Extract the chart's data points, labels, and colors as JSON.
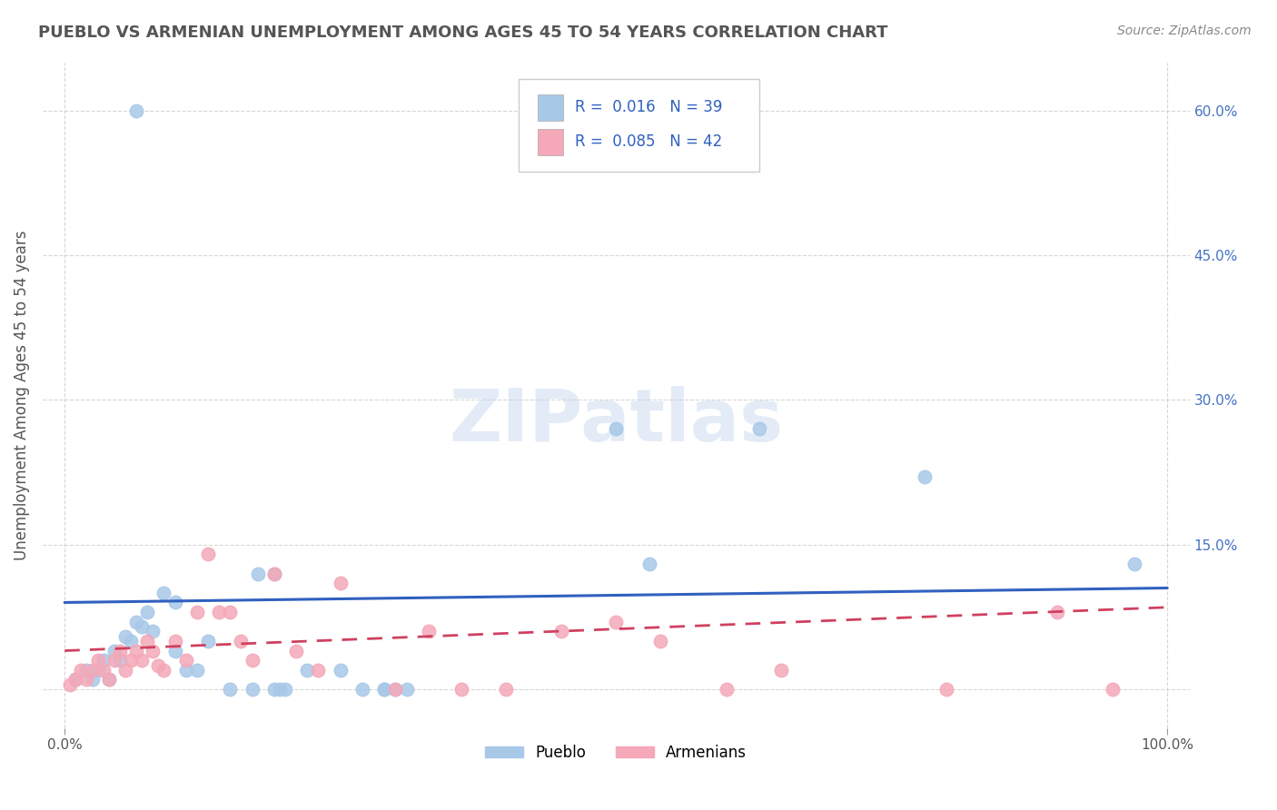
{
  "title": "PUEBLO VS ARMENIAN UNEMPLOYMENT AMONG AGES 45 TO 54 YEARS CORRELATION CHART",
  "source": "Source: ZipAtlas.com",
  "ylabel": "Unemployment Among Ages 45 to 54 years",
  "xlim": [
    -0.02,
    1.02
  ],
  "ylim": [
    -0.04,
    0.65
  ],
  "xtick_vals": [
    0.0,
    1.0
  ],
  "xticklabels": [
    "0.0%",
    "100.0%"
  ],
  "ytick_vals": [
    0.0,
    0.15,
    0.3,
    0.45,
    0.6
  ],
  "yticklabels": [
    "",
    "15.0%",
    "30.0%",
    "45.0%",
    "60.0%"
  ],
  "pueblo_R": 0.016,
  "pueblo_N": 39,
  "armenian_R": 0.085,
  "armenian_N": 42,
  "pueblo_color": "#a8c8e8",
  "armenian_color": "#f4a8b8",
  "pueblo_line_color": "#3060c0",
  "armenian_line_color": "#d04060",
  "pueblo_x": [
    0.01,
    0.02,
    0.025,
    0.03,
    0.035,
    0.04,
    0.045,
    0.05,
    0.055,
    0.06,
    0.065,
    0.07,
    0.075,
    0.08,
    0.09,
    0.1,
    0.1,
    0.11,
    0.12,
    0.13,
    0.15,
    0.17,
    0.19,
    0.2,
    0.22,
    0.25,
    0.27,
    0.29,
    0.175,
    0.19,
    0.195,
    0.29,
    0.3,
    0.31,
    0.5,
    0.53,
    0.63,
    0.78,
    0.97
  ],
  "pueblo_y": [
    0.01,
    0.02,
    0.01,
    0.02,
    0.03,
    0.01,
    0.04,
    0.03,
    0.055,
    0.05,
    0.07,
    0.065,
    0.08,
    0.06,
    0.1,
    0.09,
    0.04,
    0.02,
    0.02,
    0.05,
    0.0,
    0.0,
    0.0,
    0.0,
    0.02,
    0.02,
    0.0,
    0.0,
    0.12,
    0.12,
    0.0,
    0.0,
    0.0,
    0.0,
    0.27,
    0.13,
    0.27,
    0.22,
    0.13
  ],
  "pueblo_outlier_x": [
    0.065
  ],
  "pueblo_outlier_y": [
    0.6
  ],
  "armenian_x": [
    0.005,
    0.01,
    0.015,
    0.02,
    0.025,
    0.03,
    0.035,
    0.04,
    0.045,
    0.05,
    0.055,
    0.06,
    0.065,
    0.07,
    0.075,
    0.08,
    0.085,
    0.09,
    0.1,
    0.11,
    0.12,
    0.13,
    0.14,
    0.15,
    0.16,
    0.17,
    0.19,
    0.21,
    0.23,
    0.25,
    0.3,
    0.33,
    0.36,
    0.4,
    0.45,
    0.5,
    0.54,
    0.6,
    0.65,
    0.8,
    0.9,
    0.95
  ],
  "armenian_y": [
    0.005,
    0.01,
    0.02,
    0.01,
    0.02,
    0.03,
    0.02,
    0.01,
    0.03,
    0.04,
    0.02,
    0.03,
    0.04,
    0.03,
    0.05,
    0.04,
    0.025,
    0.02,
    0.05,
    0.03,
    0.08,
    0.14,
    0.08,
    0.08,
    0.05,
    0.03,
    0.12,
    0.04,
    0.02,
    0.11,
    0.0,
    0.06,
    0.0,
    0.0,
    0.06,
    0.07,
    0.05,
    0.0,
    0.02,
    0.0,
    0.08,
    0.0
  ],
  "pueblo_trend": [
    0.0,
    1.0,
    0.09,
    0.105
  ],
  "armenian_trend": [
    0.0,
    1.0,
    0.04,
    0.085
  ],
  "background_color": "#ffffff",
  "grid_color": "#cccccc"
}
